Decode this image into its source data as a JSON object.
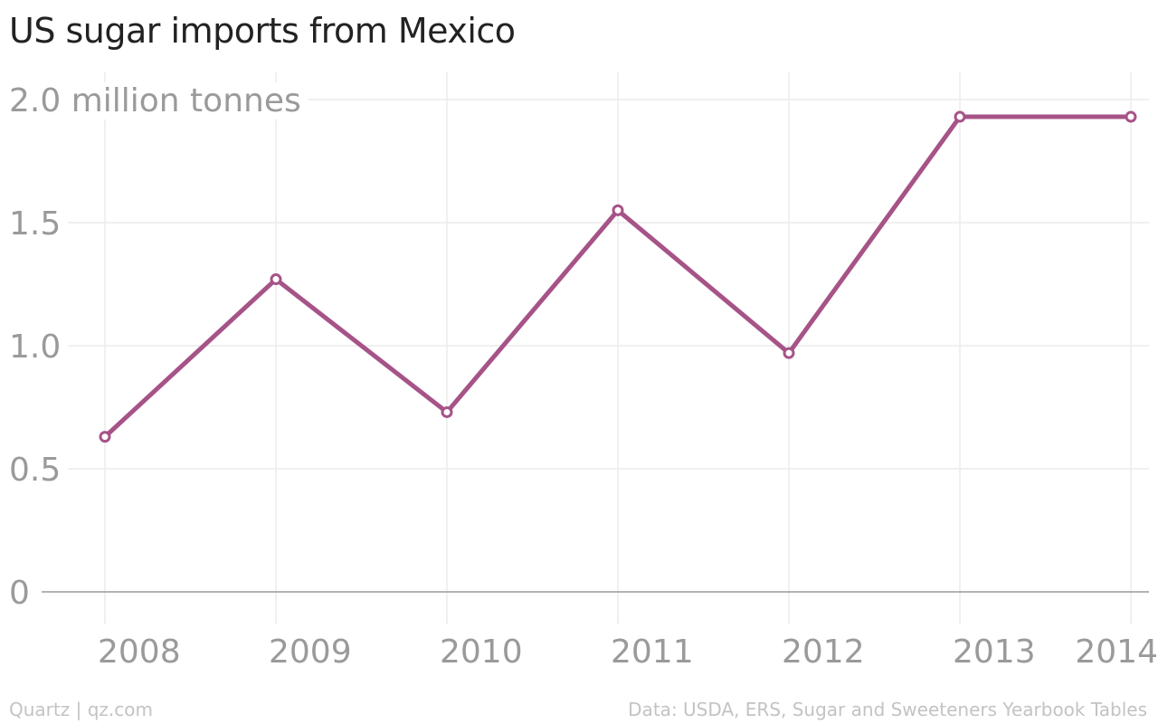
{
  "title": "US sugar imports from Mexico",
  "footer": {
    "source_brand": "Quartz | qz.com",
    "source_data": "Data: USDA, ERS, Sugar and Sweeteners Yearbook Tables"
  },
  "colors": {
    "line": "#a65388",
    "grid": "#ececec",
    "baseline": "#9a9a9a",
    "tick_text": "#9a9a9a",
    "title_text": "#222222",
    "footer_text": "#c3c3c3"
  },
  "chart_data": {
    "type": "line",
    "title": "US sugar imports from Mexico",
    "xlabel": "",
    "ylabel": "",
    "x": [
      "2008",
      "2009",
      "2010",
      "2011",
      "2012",
      "2013",
      "2014"
    ],
    "series": [
      {
        "values": [
          0.63,
          1.27,
          0.73,
          1.55,
          0.97,
          1.93,
          1.93
        ]
      }
    ],
    "ylim": [
      0,
      2.0
    ],
    "y_ticks": [
      {
        "value": 0,
        "label": "0"
      },
      {
        "value": 0.5,
        "label": "0.5"
      },
      {
        "value": 1.0,
        "label": "1.0"
      },
      {
        "value": 1.5,
        "label": "1.5"
      },
      {
        "value": 2.0,
        "label": "2.0 million tonnes"
      }
    ],
    "grid": true,
    "legend": "none"
  }
}
